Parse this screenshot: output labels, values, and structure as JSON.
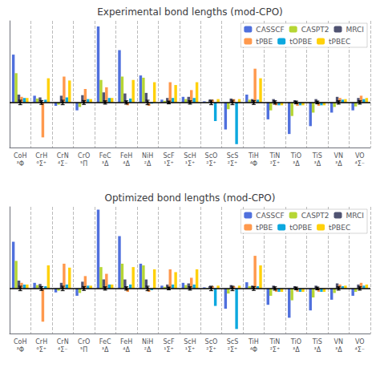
{
  "chart_data": [
    {
      "type": "bar",
      "title": "Experimental bond lengths (mod-CPO)",
      "categories": [
        "CoH\n³Φ",
        "CrH\n⁶Σ⁺",
        "CrN\n⁴Σ⁻",
        "CrO\n⁵Π",
        "FeC\n³Δ",
        "FeH\n⁴Δ",
        "NiH\n²Δ",
        "ScF\n¹Σ⁺",
        "ScH\n¹Σ⁺",
        "ScO\n²Σ⁺",
        "ScS\n²Σ⁺",
        "TiH\n⁴Φ",
        "TiN\n²Σ⁺",
        "TiO\n³Δ",
        "TiS\n³Δ",
        "VN\n³Δ",
        "VO\n⁴Σ⁻"
      ],
      "series": [
        {
          "name": "CASSCF",
          "values": [
            0.85,
            0.12,
            -0.06,
            -0.14,
            1.35,
            0.93,
            0.48,
            0.05,
            0.1,
            0.02,
            -0.48,
            0.14,
            -0.3,
            -0.56,
            -0.42,
            -0.18,
            -0.14
          ]
        },
        {
          "name": "CASPT2",
          "values": [
            0.52,
            0.07,
            -0.04,
            -0.08,
            0.4,
            0.46,
            0.44,
            0.03,
            0.06,
            0.01,
            -0.12,
            0.05,
            -0.14,
            -0.24,
            -0.18,
            -0.08,
            -0.07
          ]
        },
        {
          "name": "MRCI",
          "values": [
            0.14,
            0.09,
            0.12,
            0.13,
            0.18,
            0.16,
            0.17,
            0.08,
            0.1,
            0.05,
            0.07,
            0.06,
            0.06,
            0.04,
            0.06,
            0.1,
            0.08
          ]
        },
        {
          "name": "tPBE",
          "values": [
            0.1,
            -0.62,
            0.46,
            0.24,
            0.27,
            -0.05,
            -0.06,
            0.36,
            0.22,
            0.05,
            0.06,
            0.6,
            -0.05,
            -0.06,
            -0.06,
            0.08,
            0.12
          ]
        },
        {
          "name": "tOPBE",
          "values": [
            0.08,
            0.05,
            0.09,
            0.06,
            0.08,
            0.07,
            -0.02,
            0.08,
            0.08,
            -0.33,
            -0.74,
            0.05,
            -0.05,
            -0.05,
            -0.05,
            0.05,
            0.06
          ]
        },
        {
          "name": "tPBEC",
          "values": [
            0.08,
            0.43,
            0.39,
            0.06,
            0.08,
            0.4,
            0.36,
            0.31,
            0.36,
            0.06,
            0.06,
            0.43,
            -0.05,
            -0.05,
            -0.05,
            0.06,
            0.08
          ]
        }
      ],
      "errors": [
        0.04,
        0.035,
        0.04,
        0.035,
        0.03,
        0.03,
        0.04,
        0.025,
        0.03,
        0.04,
        0.04,
        0.035,
        0.03,
        0.025,
        0.025,
        0.03,
        0.03
      ],
      "ylim": [
        -0.8,
        1.45
      ],
      "tick_labels": false,
      "grid": true,
      "legend": "upper right"
    },
    {
      "type": "bar",
      "title": "Optimized bond lengths (mod-CPO)",
      "categories": [
        "CoH\n³Φ",
        "CrH\n⁶Σ⁺",
        "CrN\n⁴Σ⁻",
        "CrO\n⁵Π",
        "FeC\n³Δ",
        "FeH\n⁴Δ",
        "NiH\n²Δ",
        "ScF\n¹Σ⁺",
        "ScH\n¹Σ⁺",
        "ScO\n²Σ⁺",
        "ScS\n²Σ⁺",
        "TiH\n⁴Φ",
        "TiN\n²Σ⁺",
        "TiO\n³Δ",
        "TiS\n³Δ",
        "VN\n³Δ",
        "VO\n⁴Σ⁻"
      ],
      "series": [
        {
          "name": "CASSCF",
          "values": [
            0.83,
            0.1,
            -0.07,
            -0.13,
            1.4,
            0.93,
            0.44,
            0.05,
            0.1,
            0.02,
            -0.36,
            0.11,
            -0.29,
            -0.52,
            -0.39,
            -0.2,
            -0.13
          ]
        },
        {
          "name": "CASPT2",
          "values": [
            0.49,
            0.06,
            -0.04,
            -0.08,
            0.38,
            0.44,
            0.41,
            0.03,
            0.06,
            0.01,
            -0.09,
            0.04,
            -0.13,
            -0.21,
            -0.16,
            -0.08,
            -0.06
          ]
        },
        {
          "name": "MRCI",
          "values": [
            0.14,
            0.08,
            0.1,
            0.12,
            0.16,
            0.16,
            0.16,
            0.07,
            0.09,
            0.04,
            0.06,
            0.05,
            0.05,
            0.04,
            0.05,
            0.09,
            0.07
          ]
        },
        {
          "name": "tPBE",
          "values": [
            0.1,
            -0.59,
            0.44,
            0.22,
            0.26,
            -0.06,
            -0.06,
            0.34,
            0.19,
            0.04,
            0.04,
            0.58,
            -0.06,
            -0.06,
            -0.06,
            0.07,
            0.1
          ]
        },
        {
          "name": "tOPBE",
          "values": [
            0.07,
            0.04,
            0.07,
            0.05,
            0.07,
            0.07,
            -0.03,
            0.07,
            0.07,
            -0.31,
            -0.72,
            0.04,
            -0.06,
            -0.06,
            -0.06,
            0.04,
            0.05
          ]
        },
        {
          "name": "tPBEC",
          "values": [
            0.07,
            0.41,
            0.37,
            0.05,
            0.07,
            0.38,
            0.34,
            0.29,
            0.34,
            0.05,
            0.05,
            0.41,
            -0.06,
            -0.06,
            -0.06,
            0.05,
            0.07
          ]
        }
      ],
      "errors": [
        0.04,
        0.035,
        0.04,
        0.035,
        0.03,
        0.03,
        0.04,
        0.025,
        0.03,
        0.04,
        0.04,
        0.035,
        0.03,
        0.025,
        0.025,
        0.03,
        0.03
      ],
      "ylim": [
        -0.8,
        1.45
      ],
      "tick_labels": false,
      "grid": true,
      "legend": "upper right"
    }
  ]
}
